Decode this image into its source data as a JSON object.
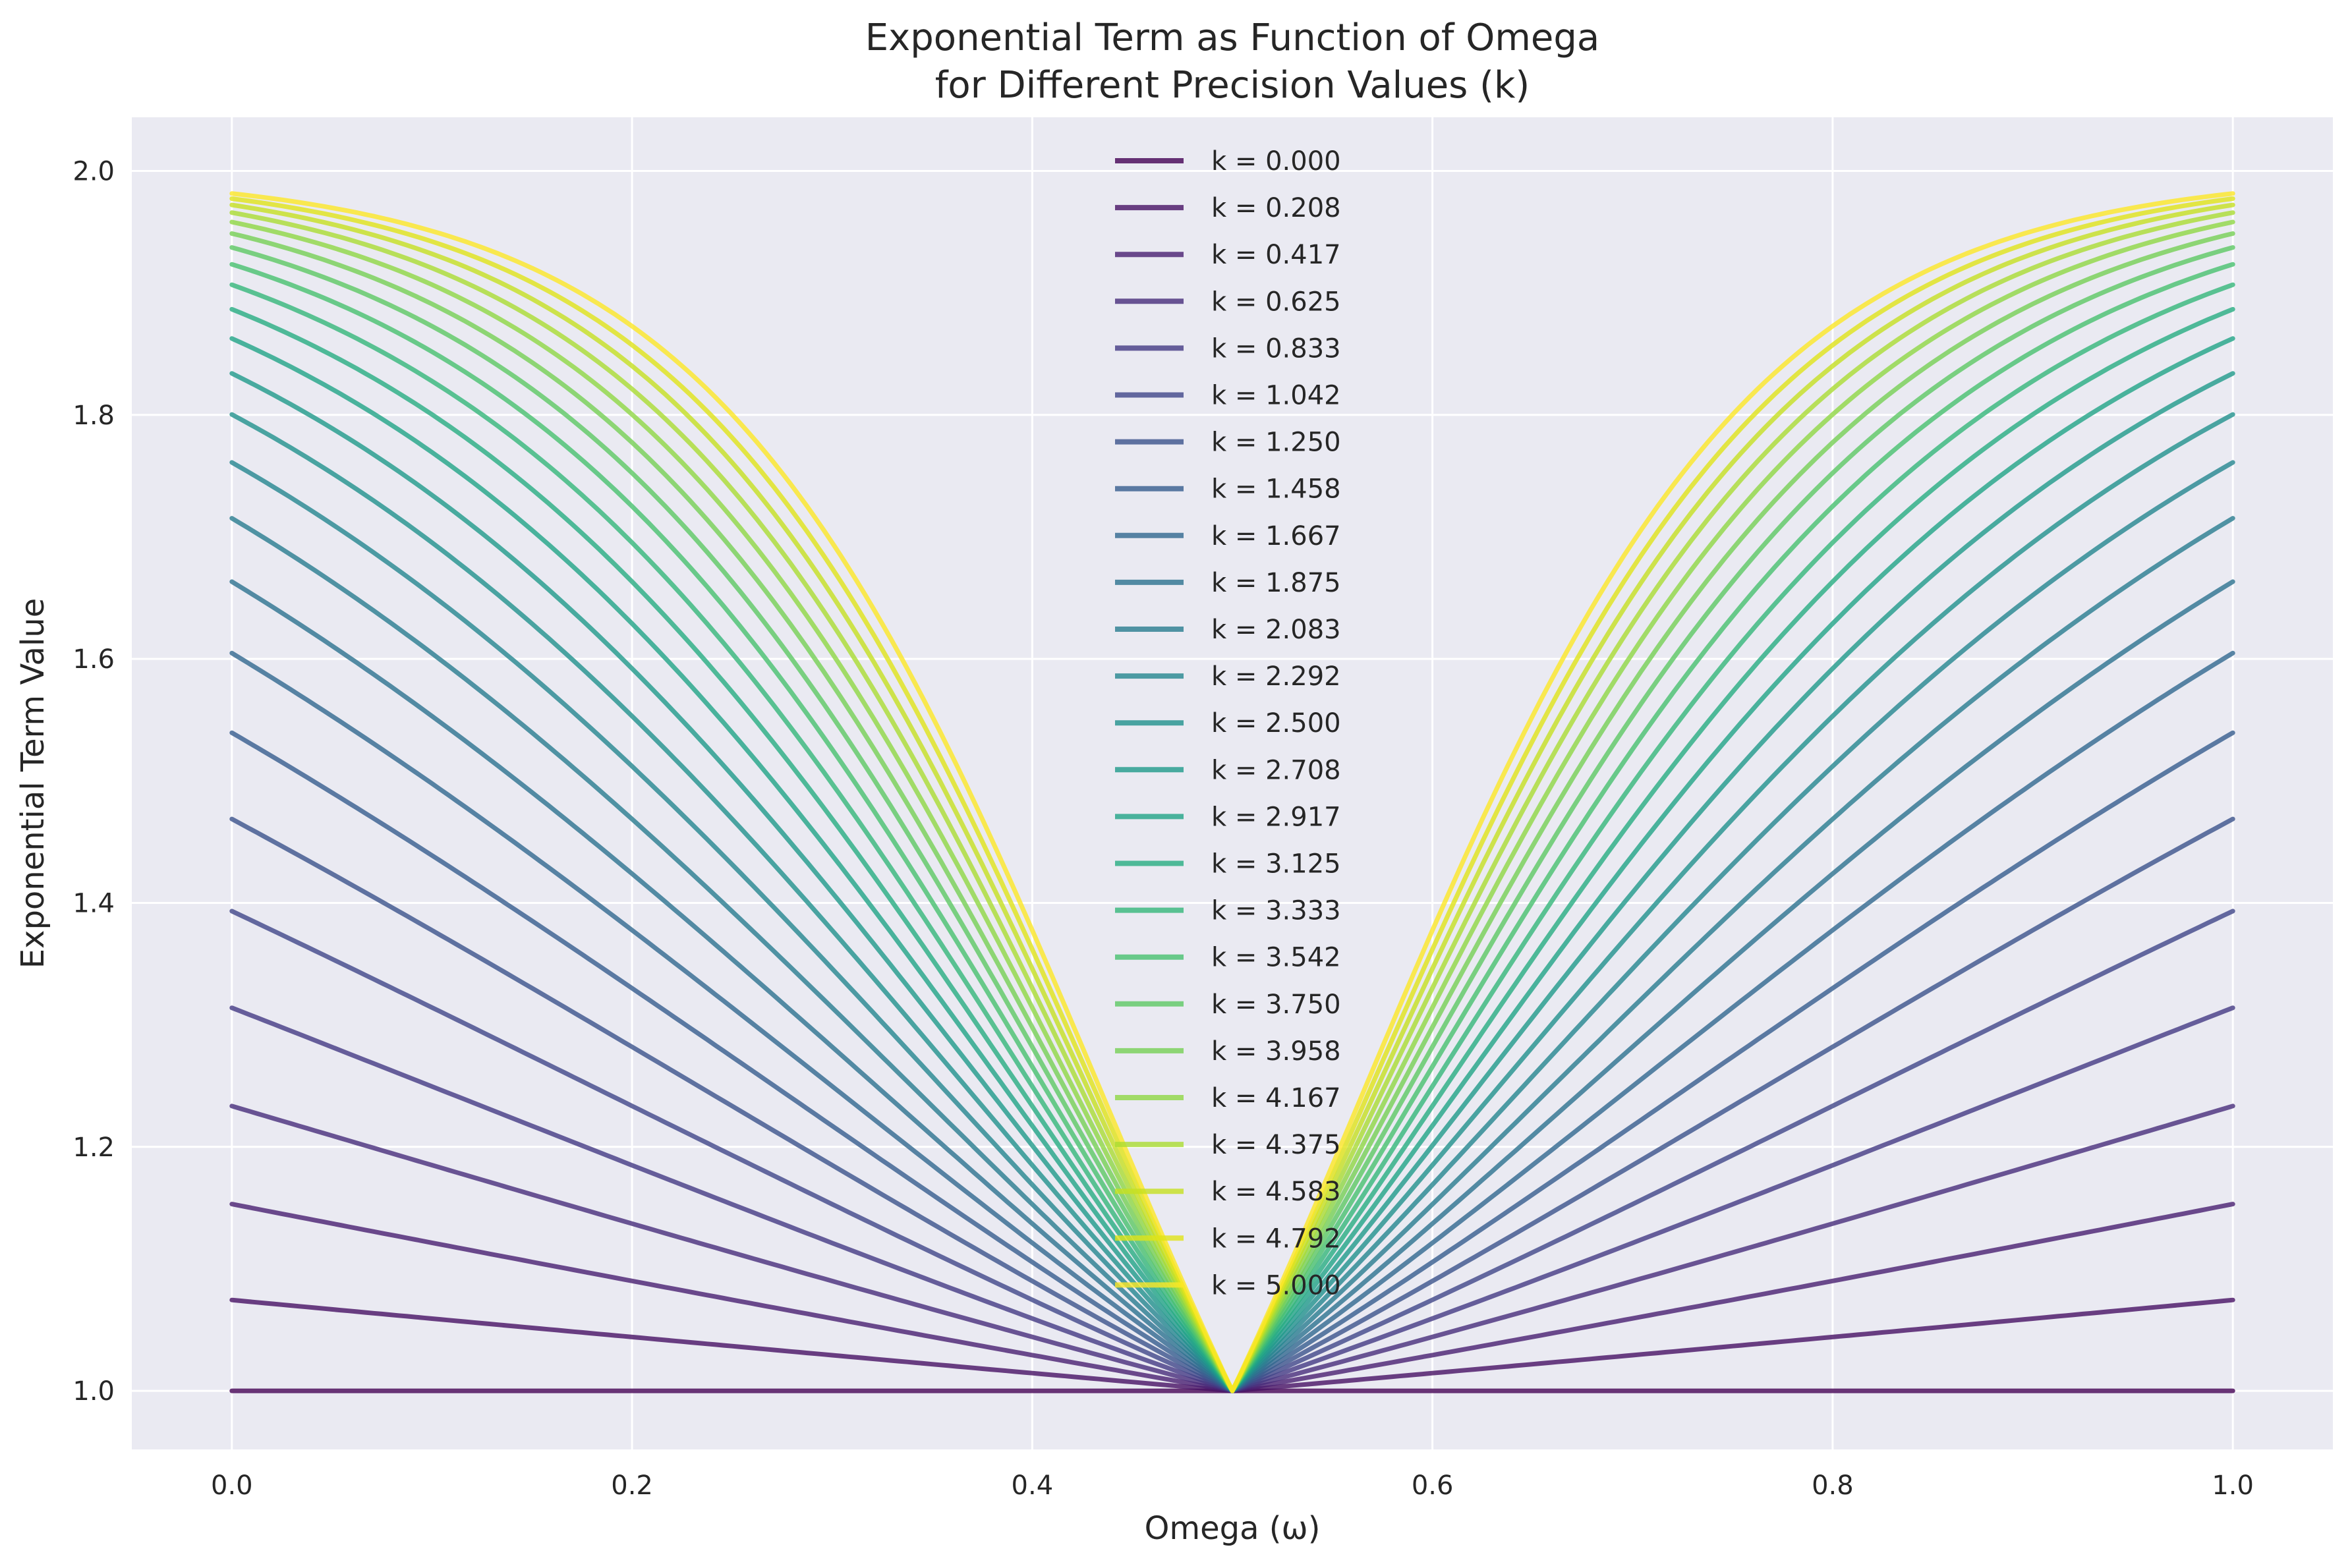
{
  "chart_data": {
    "type": "line",
    "title_lines": [
      "Exponential Term as Function of Omega",
      "for Different Precision Values (k)"
    ],
    "xlabel": "Omega (ω)",
    "ylabel": "Exponential Term Value",
    "xlim": [
      -0.05,
      1.05
    ],
    "ylim": [
      0.952,
      2.044
    ],
    "xticks": [
      0.0,
      0.2,
      0.4,
      0.6,
      0.8,
      1.0
    ],
    "xtick_labels": [
      "0.0",
      "0.2",
      "0.4",
      "0.6",
      "0.8",
      "1.0"
    ],
    "yticks": [
      1.0,
      1.2,
      1.4,
      1.6,
      1.8,
      2.0
    ],
    "ytick_labels": [
      "1.0",
      "1.2",
      "1.4",
      "1.6",
      "1.8",
      "2.0"
    ],
    "grid": true,
    "legend_position": "top-center",
    "background_color": "#eaeaf2",
    "colormap": "viridis",
    "formula_note": "curves rendered as y = exp(ln2 * tanh(k*|omega-0.5|)), estimated fit",
    "series": [
      {
        "name": "k = 0.000",
        "k": 0.0,
        "color": "#440154",
        "endpoint_value": 1.0
      },
      {
        "name": "k = 0.208",
        "k": 0.208,
        "color": "#471164",
        "endpoint_value": 1.104
      },
      {
        "name": "k = 0.417",
        "k": 0.417,
        "color": "#481f70",
        "endpoint_value": 1.206
      },
      {
        "name": "k = 0.625",
        "k": 0.625,
        "color": "#472d7b",
        "endpoint_value": 1.302
      },
      {
        "name": "k = 0.833",
        "k": 0.833,
        "color": "#443a83",
        "endpoint_value": 1.394
      },
      {
        "name": "k = 1.042",
        "k": 1.042,
        "color": "#404688",
        "endpoint_value": 1.478
      },
      {
        "name": "k = 1.250",
        "k": 1.25,
        "color": "#3b528b",
        "endpoint_value": 1.554
      },
      {
        "name": "k = 1.458",
        "k": 1.458,
        "color": "#365d8d",
        "endpoint_value": 1.621
      },
      {
        "name": "k = 1.667",
        "k": 1.667,
        "color": "#31688e",
        "endpoint_value": 1.681
      },
      {
        "name": "k = 1.875",
        "k": 1.875,
        "color": "#2c728e",
        "endpoint_value": 1.733
      },
      {
        "name": "k = 2.083",
        "k": 2.083,
        "color": "#287c8e",
        "endpoint_value": 1.777
      },
      {
        "name": "k = 2.292",
        "k": 2.292,
        "color": "#24868e",
        "endpoint_value": 1.815
      },
      {
        "name": "k = 2.500",
        "k": 2.5,
        "color": "#21918c",
        "endpoint_value": 1.847
      },
      {
        "name": "k = 2.708",
        "k": 2.708,
        "color": "#1f9a8a",
        "endpoint_value": 1.873
      },
      {
        "name": "k = 2.917",
        "k": 2.917,
        "color": "#20a486",
        "endpoint_value": 1.895
      },
      {
        "name": "k = 3.125",
        "k": 3.125,
        "color": "#27ad81",
        "endpoint_value": 1.913
      },
      {
        "name": "k = 3.333",
        "k": 3.333,
        "color": "#35b779",
        "endpoint_value": 1.928
      },
      {
        "name": "k = 3.542",
        "k": 3.542,
        "color": "#47c16e",
        "endpoint_value": 1.941
      },
      {
        "name": "k = 3.750",
        "k": 3.75,
        "color": "#5dc863",
        "endpoint_value": 1.951
      },
      {
        "name": "k = 3.958",
        "k": 3.958,
        "color": "#75d054",
        "endpoint_value": 1.959
      },
      {
        "name": "k = 4.167",
        "k": 4.167,
        "color": "#8fd744",
        "endpoint_value": 1.966
      },
      {
        "name": "k = 4.375",
        "k": 4.375,
        "color": "#aadc32",
        "endpoint_value": 1.972
      },
      {
        "name": "k = 4.583",
        "k": 4.583,
        "color": "#c5e021",
        "endpoint_value": 1.977
      },
      {
        "name": "k = 4.792",
        "k": 4.792,
        "color": "#e0e318",
        "endpoint_value": 1.981
      },
      {
        "name": "k = 5.000",
        "k": 5.0,
        "color": "#fde725",
        "endpoint_value": 1.985
      }
    ]
  }
}
